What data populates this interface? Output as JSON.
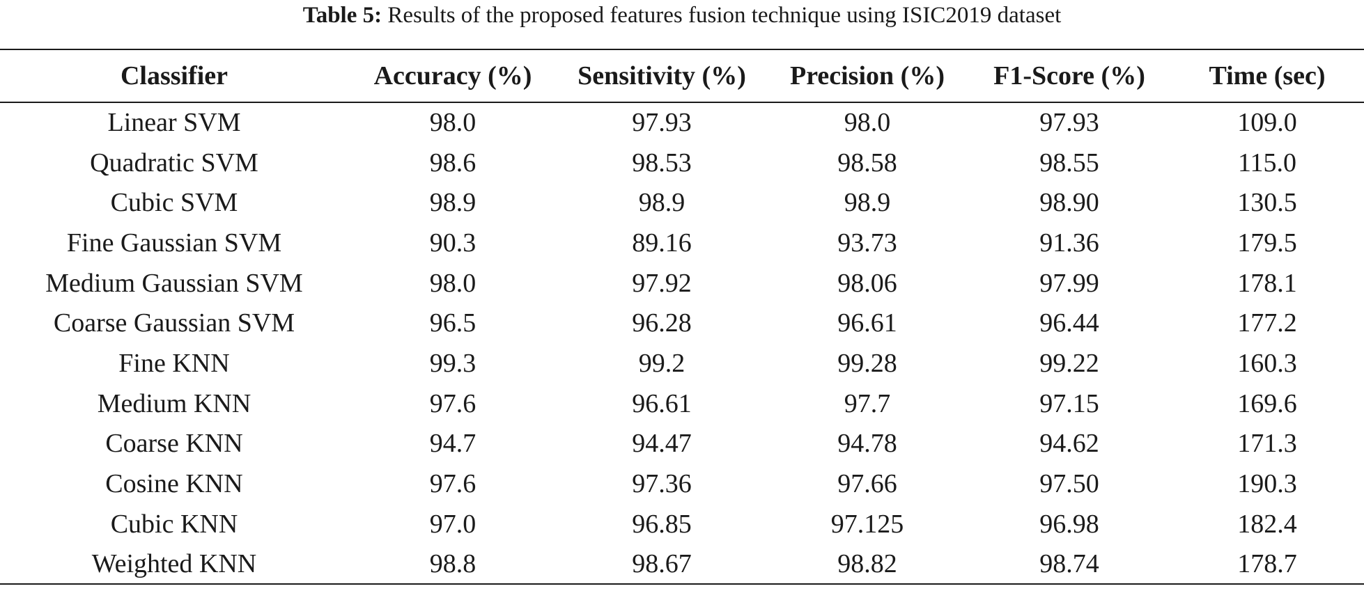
{
  "caption": {
    "label": "Table 5:",
    "text": " Results of the proposed features fusion technique using ISIC2019 dataset"
  },
  "table": {
    "headers": [
      "Classifier",
      "Accuracy (%)",
      "Sensitivity (%)",
      "Precision (%)",
      "F1-Score (%)",
      "Time (sec)"
    ],
    "rows": [
      [
        "Linear SVM",
        "98.0",
        "97.93",
        "98.0",
        "97.93",
        "109.0"
      ],
      [
        "Quadratic SVM",
        "98.6",
        "98.53",
        "98.58",
        "98.55",
        "115.0"
      ],
      [
        "Cubic SVM",
        "98.9",
        "98.9",
        "98.9",
        "98.90",
        "130.5"
      ],
      [
        "Fine Gaussian SVM",
        "90.3",
        "89.16",
        "93.73",
        "91.36",
        "179.5"
      ],
      [
        "Medium Gaussian SVM",
        "98.0",
        "97.92",
        "98.06",
        "97.99",
        "178.1"
      ],
      [
        "Coarse Gaussian SVM",
        "96.5",
        "96.28",
        "96.61",
        "96.44",
        "177.2"
      ],
      [
        "Fine KNN",
        "99.3",
        "99.2",
        "99.28",
        "99.22",
        "160.3"
      ],
      [
        "Medium KNN",
        "97.6",
        "96.61",
        "97.7",
        "97.15",
        "169.6"
      ],
      [
        "Coarse KNN",
        "94.7",
        "94.47",
        "94.78",
        "94.62",
        "171.3"
      ],
      [
        "Cosine KNN",
        "97.6",
        "97.36",
        "97.66",
        "97.50",
        "190.3"
      ],
      [
        "Cubic KNN",
        "97.0",
        "96.85",
        "97.125",
        "96.98",
        "182.4"
      ],
      [
        "Weighted KNN",
        "98.8",
        "98.67",
        "98.82",
        "98.74",
        "178.7"
      ]
    ]
  }
}
